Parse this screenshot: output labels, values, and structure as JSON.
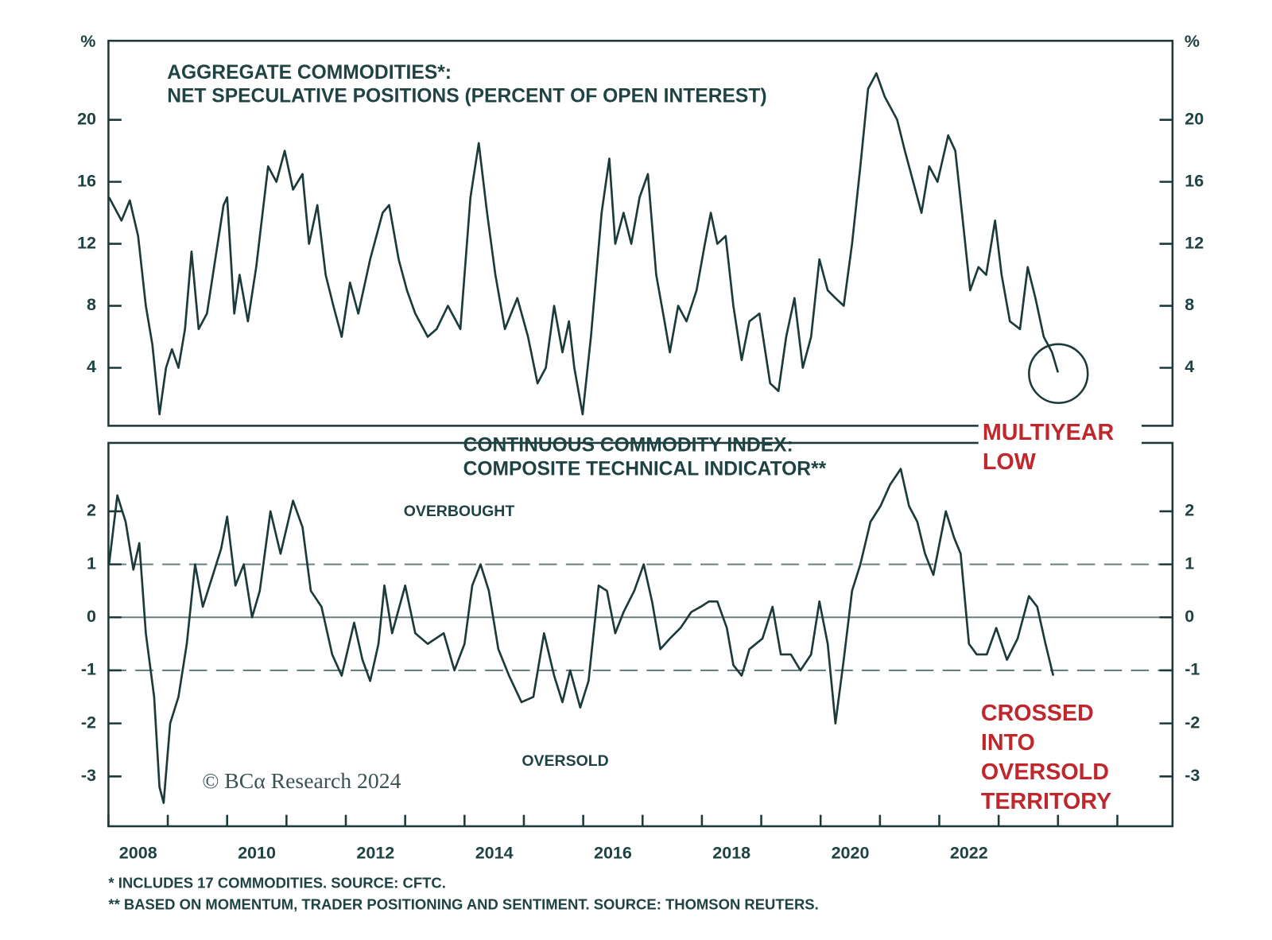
{
  "chart_data": [
    {
      "type": "line",
      "title": [
        "AGGREGATE COMMODITIES*:",
        "NET SPECULATIVE POSITIONS (PERCENT OF OPEN INTEREST)"
      ],
      "y_unit": "%",
      "xlim": [
        2008,
        2025.93
      ],
      "ylim": [
        0.26,
        25.1
      ],
      "yticks": [
        4,
        8,
        12,
        16,
        20
      ],
      "color": "#1c3a3a",
      "annotations": [
        [
          "MULTIYEAR",
          "LOW"
        ]
      ],
      "x": [
        2008.01,
        2008.22,
        2008.36,
        2008.5,
        2008.63,
        2008.74,
        2008.86,
        2008.97,
        2009.07,
        2009.18,
        2009.29,
        2009.4,
        2009.52,
        2009.66,
        2009.8,
        2009.94,
        2010.0,
        2010.12,
        2010.21,
        2010.35,
        2010.49,
        2010.69,
        2010.83,
        2010.97,
        2011.11,
        2011.27,
        2011.38,
        2011.52,
        2011.66,
        2011.79,
        2011.93,
        2012.07,
        2012.21,
        2012.41,
        2012.62,
        2012.73,
        2012.89,
        2013.03,
        2013.17,
        2013.38,
        2013.53,
        2013.72,
        2013.93,
        2014.1,
        2014.24,
        2014.38,
        2014.52,
        2014.68,
        2014.89,
        2015.07,
        2015.23,
        2015.37,
        2015.51,
        2015.65,
        2015.76,
        2015.85,
        2015.99,
        2016.13,
        2016.31,
        2016.44,
        2016.54,
        2016.68,
        2016.81,
        2016.95,
        2017.09,
        2017.23,
        2017.37,
        2017.46,
        2017.6,
        2017.74,
        2017.91,
        2018.05,
        2018.15,
        2018.26,
        2018.4,
        2018.53,
        2018.67,
        2018.8,
        2018.97,
        2019.15,
        2019.29,
        2019.42,
        2019.56,
        2019.7,
        2019.84,
        2019.98,
        2020.12,
        2020.25,
        2020.39,
        2020.53,
        2020.67,
        2020.8,
        2020.94,
        2021.08,
        2021.29,
        2021.42,
        2021.56,
        2021.7,
        2021.83,
        2021.97,
        2022.15,
        2022.27,
        2022.41,
        2022.52,
        2022.66,
        2022.79,
        2022.94,
        2023.05,
        2023.19,
        2023.36,
        2023.49,
        2023.62,
        2023.76,
        2023.9,
        2024.0
      ],
      "values": [
        15,
        13.5,
        14.8,
        12.5,
        8,
        5.5,
        1,
        4,
        5.2,
        4,
        6.5,
        11.5,
        6.5,
        7.5,
        11,
        14.5,
        15,
        7.5,
        10,
        7,
        10.5,
        17,
        16,
        18,
        15.5,
        16.5,
        12,
        14.5,
        10,
        8,
        6,
        9.5,
        7.5,
        11,
        14,
        14.5,
        11,
        9,
        7.5,
        6,
        6.5,
        8,
        6.5,
        15,
        18.5,
        14,
        10,
        6.5,
        8.5,
        6,
        3,
        4,
        8,
        5,
        7,
        4,
        1,
        6,
        14,
        17.5,
        12,
        14,
        12,
        15,
        16.5,
        10,
        7,
        5,
        8,
        7,
        9,
        12,
        14,
        12,
        12.5,
        8,
        4.5,
        7,
        7.5,
        3,
        2.5,
        6,
        8.5,
        4,
        6,
        11,
        9,
        8.5,
        8,
        12,
        17,
        22,
        23,
        21.5,
        20,
        18,
        16,
        14,
        17,
        16,
        19,
        18,
        13,
        9,
        10.5,
        10,
        13.5,
        10,
        7,
        6.5,
        10.5,
        8.5,
        6,
        5,
        3.7
      ]
    },
    {
      "type": "line",
      "title": [
        "CONTINUOUS COMMODITY INDEX:",
        "COMPOSITE TECHNICAL INDICATOR**"
      ],
      "xlim": [
        2008,
        2025.93
      ],
      "ylim": [
        -3.94,
        3.29
      ],
      "yticks": [
        -3,
        -2,
        -1,
        0,
        1,
        2
      ],
      "xticks": [
        {
          "value": 2008.5,
          "label": "2008"
        },
        {
          "value": 2010.5,
          "label": "2010"
        },
        {
          "value": 2012.5,
          "label": "2012"
        },
        {
          "value": 2014.5,
          "label": "2014"
        },
        {
          "value": 2016.5,
          "label": "2016"
        },
        {
          "value": 2018.5,
          "label": "2018"
        },
        {
          "value": 2020.5,
          "label": "2020"
        },
        {
          "value": 2022.5,
          "label": "2022"
        }
      ],
      "xminorticks": [
        2008,
        2009,
        2010,
        2011,
        2012,
        2013,
        2014,
        2015,
        2016,
        2017,
        2018,
        2019,
        2020,
        2021,
        2022,
        2023,
        2024,
        2025
      ],
      "reference_lines": [
        {
          "value": 1,
          "style": "dashed"
        },
        {
          "value": 0,
          "style": "solid"
        },
        {
          "value": -1,
          "style": "dashed"
        }
      ],
      "zones": [
        "OVERBOUGHT",
        "OVERSOLD"
      ],
      "color": "#1c3a3a",
      "annotations": [
        [
          "CROSSED",
          "INTO",
          "OVERSOLD",
          "TERRITORY"
        ]
      ],
      "x": [
        2008.01,
        2008.15,
        2008.29,
        2008.42,
        2008.52,
        2008.63,
        2008.77,
        2008.86,
        2008.93,
        2009.04,
        2009.18,
        2009.32,
        2009.46,
        2009.59,
        2009.76,
        2009.9,
        2010.0,
        2010.14,
        2010.28,
        2010.42,
        2010.55,
        2010.73,
        2010.9,
        2011.11,
        2011.27,
        2011.41,
        2011.59,
        2011.77,
        2011.93,
        2012.14,
        2012.28,
        2012.41,
        2012.55,
        2012.65,
        2012.78,
        2013.0,
        2013.17,
        2013.38,
        2013.65,
        2013.83,
        2014.0,
        2014.13,
        2014.27,
        2014.41,
        2014.57,
        2014.75,
        2014.96,
        2015.16,
        2015.34,
        2015.51,
        2015.65,
        2015.78,
        2015.95,
        2016.09,
        2016.26,
        2016.4,
        2016.54,
        2016.68,
        2016.86,
        2017.02,
        2017.16,
        2017.3,
        2017.46,
        2017.64,
        2017.82,
        2017.98,
        2018.12,
        2018.26,
        2018.42,
        2018.53,
        2018.67,
        2018.8,
        2019.02,
        2019.19,
        2019.33,
        2019.5,
        2019.66,
        2019.84,
        2019.98,
        2020.12,
        2020.25,
        2020.39,
        2020.53,
        2020.67,
        2020.84,
        2021.01,
        2021.17,
        2021.35,
        2021.49,
        2021.63,
        2021.76,
        2021.9,
        2022.11,
        2022.25,
        2022.36,
        2022.5,
        2022.63,
        2022.8,
        2022.96,
        2023.14,
        2023.32,
        2023.51,
        2023.65,
        2023.79,
        2023.92
      ],
      "values": [
        1,
        2.3,
        1.8,
        0.9,
        1.4,
        -0.3,
        -1.5,
        -3.2,
        -3.5,
        -2,
        -1.5,
        -0.5,
        1,
        0.2,
        0.8,
        1.3,
        1.9,
        0.6,
        1,
        0,
        0.5,
        2,
        1.2,
        2.2,
        1.7,
        0.5,
        0.2,
        -0.7,
        -1.1,
        -0.1,
        -0.8,
        -1.2,
        -0.5,
        0.6,
        -0.3,
        0.6,
        -0.3,
        -0.5,
        -0.3,
        -1,
        -0.5,
        0.6,
        1,
        0.5,
        -0.6,
        -1.1,
        -1.6,
        -1.5,
        -0.3,
        -1.1,
        -1.6,
        -1,
        -1.7,
        -1.2,
        0.6,
        0.5,
        -0.3,
        0.1,
        0.5,
        1,
        0.3,
        -0.6,
        -0.4,
        -0.2,
        0.1,
        0.2,
        0.3,
        0.3,
        -0.2,
        -0.9,
        -1.1,
        -0.6,
        -0.4,
        0.2,
        -0.7,
        -0.7,
        -1,
        -0.7,
        0.3,
        -0.5,
        -2,
        -0.8,
        0.5,
        1,
        1.8,
        2.1,
        2.5,
        2.8,
        2.1,
        1.8,
        1.2,
        0.8,
        2,
        1.5,
        1.2,
        -0.5,
        -0.7,
        -0.7,
        -0.2,
        -0.8,
        -0.4,
        0.4,
        0.2,
        -0.5,
        -1.1
      ]
    }
  ],
  "credit": "© BCα Research 2024",
  "footnotes": [
    "*  INCLUDES 17 COMMODITIES. SOURCE: CFTC.",
    "** BASED ON MOMENTUM, TRADER POSITIONING AND SENTIMENT. SOURCE: THOMSON REUTERS."
  ]
}
